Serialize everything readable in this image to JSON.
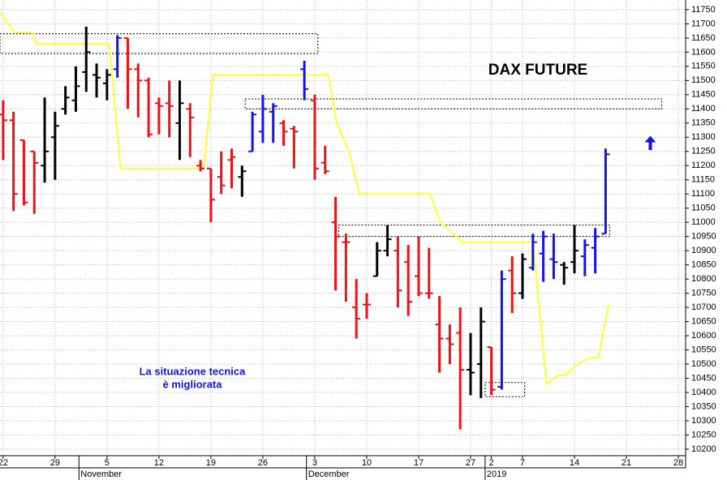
{
  "chart_data": {
    "type": "ohlc",
    "title": "DAX FUTURE",
    "annotations": [
      "La situazione tecnica",
      "è migliorata"
    ],
    "xlim": [
      -0.3,
      65.7
    ],
    "ylim": [
      10177,
      11784
    ],
    "xticks": [
      {
        "value": 0,
        "label": "22"
      },
      {
        "value": 5,
        "label": "29"
      },
      {
        "value": 10,
        "label": "5"
      },
      {
        "value": 15,
        "label": "12"
      },
      {
        "value": 20,
        "label": "19"
      },
      {
        "value": 25,
        "label": "26"
      },
      {
        "value": 30,
        "label": "3"
      },
      {
        "value": 35,
        "label": "10"
      },
      {
        "value": 40,
        "label": "17"
      },
      {
        "value": 45,
        "label": "27"
      },
      {
        "value": 47,
        "label": "2"
      },
      {
        "value": 50,
        "label": "7"
      },
      {
        "value": 55,
        "label": "14"
      },
      {
        "value": 60,
        "label": "21"
      },
      {
        "value": 65,
        "label": "28"
      }
    ],
    "month_labels": [
      {
        "value": 7.3,
        "label": "November"
      },
      {
        "value": 29.2,
        "label": "December"
      },
      {
        "value": 46.4,
        "label": "2019"
      }
    ],
    "yticks": [
      10200,
      10250,
      10300,
      10350,
      10400,
      10450,
      10500,
      10550,
      10600,
      10650,
      10700,
      10750,
      10800,
      10850,
      10900,
      10950,
      11000,
      11050,
      11100,
      11150,
      11200,
      11250,
      11300,
      11350,
      11400,
      11450,
      11500,
      11550,
      11600,
      11650,
      11700,
      11750
    ],
    "grid": true,
    "bars": {
      "x": [
        0,
        1,
        2,
        3,
        4,
        5,
        6,
        7,
        8,
        9,
        10,
        11,
        12,
        13,
        14,
        15,
        16,
        17,
        18,
        19,
        20,
        21,
        22,
        23,
        24,
        25,
        26,
        27,
        28,
        29,
        30,
        31,
        32,
        33,
        34,
        35,
        36,
        37,
        38,
        39,
        40,
        41,
        42,
        43,
        44,
        45,
        46,
        47,
        48,
        49,
        50,
        51,
        52,
        53,
        54,
        55,
        56,
        57,
        58
      ],
      "open": [
        11380,
        11360,
        11290,
        11250,
        11200,
        11300,
        11400,
        11430,
        11530,
        11520,
        11490,
        11540,
        11650,
        11540,
        11500,
        11420,
        11420,
        11350,
        11400,
        11200,
        11190,
        11160,
        11220,
        11160,
        11250,
        11320,
        11390,
        11350,
        11330,
        11540,
        11430,
        11210,
        11000,
        10930,
        10700,
        10710,
        10810,
        10900,
        10900,
        10860,
        10810,
        10750,
        10640,
        10590,
        10610,
        10480,
        10500,
        10560,
        10420,
        10830,
        10750,
        10840,
        10890,
        10870,
        10850,
        10860,
        10880,
        10910,
        10960
      ],
      "high": [
        11430,
        11390,
        11290,
        11250,
        11440,
        11390,
        11480,
        11550,
        11690,
        11560,
        11540,
        11660,
        11650,
        11560,
        11510,
        11440,
        11500,
        11500,
        11420,
        11220,
        11190,
        11250,
        11260,
        11200,
        11390,
        11450,
        11420,
        11360,
        11340,
        11570,
        11450,
        11270,
        11090,
        10960,
        10800,
        10750,
        10930,
        10990,
        10950,
        10920,
        10950,
        10910,
        10740,
        10640,
        10700,
        10610,
        10700,
        10560,
        10830,
        10880,
        10890,
        10960,
        10970,
        10960,
        10860,
        10990,
        10940,
        10980,
        11260
      ],
      "low": [
        11220,
        11040,
        11060,
        11030,
        11140,
        11150,
        11380,
        11390,
        11460,
        11440,
        11430,
        11510,
        11400,
        11370,
        11300,
        11310,
        11300,
        11220,
        11230,
        11180,
        11000,
        11100,
        11120,
        11090,
        11250,
        11280,
        11280,
        11270,
        11190,
        11430,
        11150,
        11170,
        10760,
        10720,
        10590,
        10660,
        10810,
        10880,
        10700,
        10670,
        10740,
        10730,
        10470,
        10500,
        10270,
        10390,
        10380,
        10390,
        10410,
        10680,
        10730,
        10830,
        10790,
        10800,
        10780,
        10820,
        10810,
        10820,
        10960
      ],
      "close": [
        11360,
        11100,
        11070,
        11210,
        11250,
        11340,
        11440,
        11480,
        11600,
        11510,
        11520,
        11650,
        11540,
        11500,
        11310,
        11410,
        11410,
        11420,
        11370,
        11190,
        11080,
        11130,
        11230,
        11180,
        11380,
        11400,
        11410,
        11320,
        11320,
        11470,
        11190,
        11180,
        10950,
        10930,
        10660,
        10710,
        10900,
        10940,
        10760,
        10720,
        10750,
        10750,
        10590,
        10570,
        10480,
        10470,
        10650,
        10410,
        10800,
        10750,
        10870,
        10930,
        10950,
        10860,
        10840,
        10900,
        10920,
        10950,
        11240
      ],
      "colors": [
        "#e8141a",
        "#e8141a",
        "#e8141a",
        "#e8141a",
        "#000000",
        "#000000",
        "#000000",
        "#000000",
        "#000000",
        "#000000",
        "#000000",
        "#1414e6",
        "#e8141a",
        "#e8141a",
        "#e8141a",
        "#e8141a",
        "#e8141a",
        "#000000",
        "#e8141a",
        "#e8141a",
        "#e8141a",
        "#e8141a",
        "#e8141a",
        "#000000",
        "#1414e6",
        "#1414e6",
        "#1414e6",
        "#e8141a",
        "#e8141a",
        "#1414e6",
        "#e8141a",
        "#e8141a",
        "#e8141a",
        "#e8141a",
        "#e8141a",
        "#e8141a",
        "#000000",
        "#000000",
        "#e8141a",
        "#e8141a",
        "#e8141a",
        "#e8141a",
        "#e8141a",
        "#e8141a",
        "#e8141a",
        "#000000",
        "#000000",
        "#e8141a",
        "#1414e6",
        "#e8141a",
        "#000000",
        "#1414e6",
        "#1414e6",
        "#1414e6",
        "#000000",
        "#000000",
        "#1414e6",
        "#1414e6",
        "#1414e6"
      ]
    },
    "line": {
      "color": "#ffff33",
      "x": [
        -0.3,
        1.1,
        2.8,
        3.2,
        10.2,
        11.3,
        19.3,
        20.2,
        31.3,
        32.1,
        33.3,
        34.3,
        41.1,
        42.1,
        44.2,
        51,
        52.3,
        53.4,
        54.1,
        55.3,
        56.3,
        57.3,
        58.3
      ],
      "values": [
        11740,
        11670,
        11670,
        11630,
        11630,
        11190,
        11190,
        11520,
        11520,
        11350,
        11250,
        11100,
        11100,
        11000,
        10930,
        10930,
        10430,
        10460,
        10460,
        10500,
        10520,
        10525,
        10710
      ]
    },
    "zones": [
      {
        "x": [
          -0.3,
          30.3
        ],
        "y": [
          11595,
          11665
        ]
      },
      {
        "x": [
          23.3,
          63.4
        ],
        "y": [
          11400,
          11435
        ]
      },
      {
        "x": [
          32.3,
          58.4
        ],
        "y": [
          10950,
          10990
        ]
      },
      {
        "x": [
          46.4,
          50.2
        ],
        "y": [
          10385,
          10435
        ]
      }
    ],
    "arrow": {
      "x": 62.3,
      "y": [
        11255,
        11305
      ],
      "color": "#1414e6"
    }
  }
}
